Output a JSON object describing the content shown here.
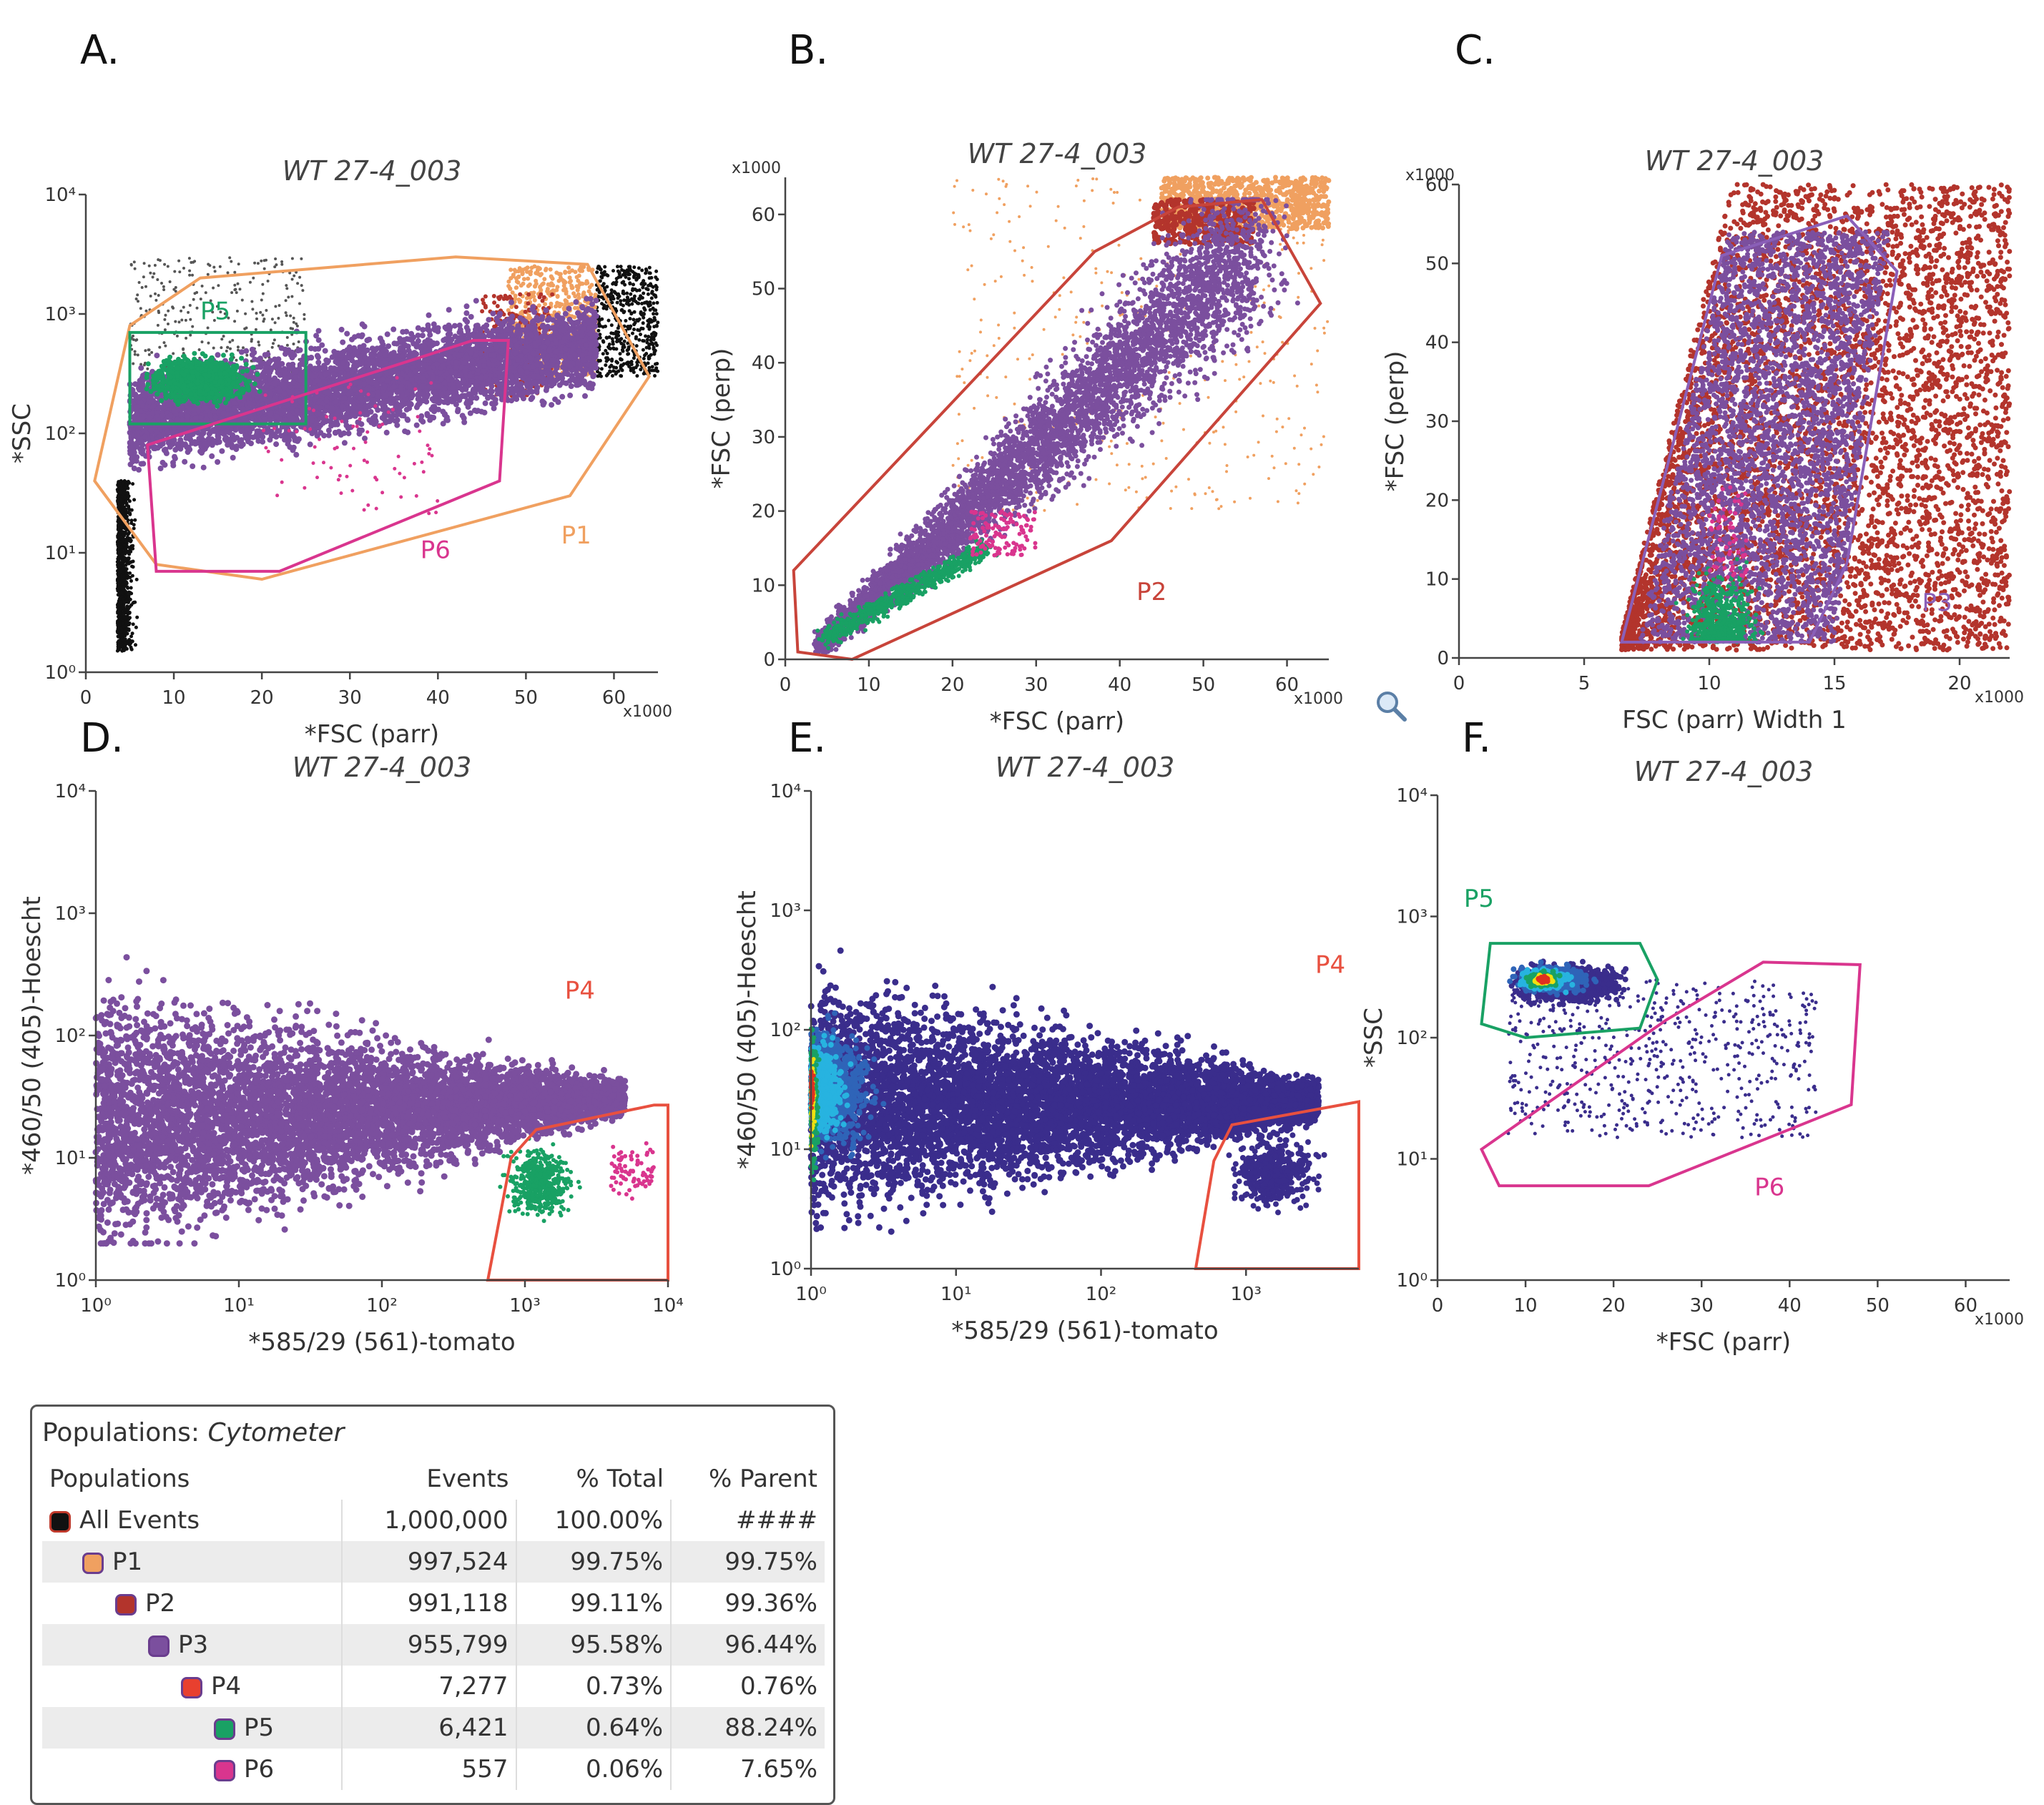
{
  "panel_letters": [
    "A.",
    "B.",
    "C.",
    "D.",
    "E.",
    "F."
  ],
  "chart_data": [
    {
      "panel": "A.",
      "type": "scatter",
      "title": "WT 27-4_003",
      "xlabel": "*FSC (parr)",
      "ylabel": "*SSC",
      "xscale": "linear",
      "x_multiplier": "x1000",
      "xlim": [
        0,
        65
      ],
      "xticks": [
        "0",
        "10",
        "20",
        "30",
        "40",
        "50",
        "60"
      ],
      "yscale": "log",
      "ylim": [
        1,
        10000
      ],
      "yticks": [
        "10⁰",
        "10¹",
        "10²",
        "10³",
        "10⁴"
      ],
      "gates": [
        {
          "name": "P1",
          "color": "#f0a060",
          "polygon": [
            [
              1,
              40
            ],
            [
              5,
              800
            ],
            [
              13,
              2000
            ],
            [
              42,
              3000
            ],
            [
              57,
              2600
            ],
            [
              64,
              300
            ],
            [
              55,
              30
            ],
            [
              20,
              6
            ],
            [
              8,
              8
            ]
          ]
        },
        {
          "name": "P5",
          "color": "#19a164",
          "polygon": [
            [
              5,
              700
            ],
            [
              25,
              700
            ],
            [
              25,
              120
            ],
            [
              5,
              120
            ]
          ]
        },
        {
          "name": "P6",
          "color": "#d9358e",
          "polygon": [
            [
              7,
              80
            ],
            [
              44,
              600
            ],
            [
              48,
              600
            ],
            [
              47,
              40
            ],
            [
              22,
              7
            ],
            [
              8,
              7
            ]
          ]
        }
      ],
      "populations": [
        {
          "name": "All Events",
          "color": "#111111",
          "region": "left edge and upper right"
        },
        {
          "name": "P1",
          "color": "#f0a060",
          "region": "upper right of gate"
        },
        {
          "name": "P2",
          "color": "#b3342c"
        },
        {
          "name": "P3",
          "color": "#7b4f9e",
          "region": "main band"
        },
        {
          "name": "P5",
          "color": "#19a164",
          "region": "x 5-25, y 100-700"
        }
      ]
    },
    {
      "panel": "B.",
      "type": "scatter",
      "title": "WT 27-4_003",
      "xlabel": "*FSC (parr)",
      "ylabel": "*FSC (perp)",
      "xscale": "linear",
      "x_multiplier": "x1000",
      "xlim": [
        0,
        65
      ],
      "xticks": [
        "0",
        "10",
        "20",
        "30",
        "40",
        "50",
        "60"
      ],
      "yscale": "linear",
      "y_multiplier": "x1000",
      "ylim": [
        0,
        65
      ],
      "yticks": [
        "0",
        "10",
        "20",
        "30",
        "40",
        "50",
        "60"
      ],
      "gates": [
        {
          "name": "P2",
          "color": "#c8443a",
          "polygon": [
            [
              1,
              12
            ],
            [
              1.5,
              1
            ],
            [
              8,
              0
            ],
            [
              39,
              16
            ],
            [
              64,
              48
            ],
            [
              57,
              62
            ],
            [
              47,
              61
            ],
            [
              37,
              55
            ]
          ]
        }
      ],
      "populations": [
        {
          "name": "P1",
          "color": "#f0a060",
          "region": "top right, saturated at y≈65"
        },
        {
          "name": "P2",
          "color": "#b3342c",
          "region": "upper tip"
        },
        {
          "name": "P3",
          "color": "#7b4f9e",
          "region": "diagonal band"
        },
        {
          "name": "P5",
          "color": "#19a164",
          "region": "x 5-25, y 3-15"
        },
        {
          "name": "P6",
          "color": "#d9358e",
          "region": "x 20-30"
        }
      ]
    },
    {
      "panel": "C.",
      "type": "scatter",
      "title": "WT 27-4_003",
      "xlabel": "FSC (parr) Width 1",
      "ylabel": "*FSC (perp)",
      "xscale": "linear",
      "x_multiplier": "x1000",
      "xlim": [
        0,
        22
      ],
      "xticks": [
        "0",
        "5",
        "10",
        "15",
        "20"
      ],
      "yscale": "linear",
      "y_multiplier": "x1000",
      "ylim": [
        0,
        60
      ],
      "yticks": [
        "0",
        "10",
        "20",
        "30",
        "40",
        "50",
        "60"
      ],
      "gates": [
        {
          "name": "P3",
          "color": "#8a5fb8",
          "polygon": [
            [
              6.5,
              2
            ],
            [
              10.5,
              51
            ],
            [
              15.5,
              56
            ],
            [
              17.5,
              49
            ],
            [
              15.5,
              12
            ],
            [
              14,
              2
            ]
          ]
        }
      ],
      "populations": [
        {
          "name": "P2",
          "color": "#b3342c",
          "region": "x 6.5-22"
        },
        {
          "name": "P3",
          "color": "#7b4f9e",
          "region": "inside gate"
        },
        {
          "name": "P5",
          "color": "#19a164",
          "region": "x 8-12, y 2-14"
        },
        {
          "name": "P6",
          "color": "#d9358e",
          "region": "x 10-11"
        }
      ]
    },
    {
      "panel": "D.",
      "type": "scatter",
      "title": "WT 27-4_003",
      "xlabel": "*585/29 (561)-tomato",
      "ylabel": "*460/50 (405)-Hoescht",
      "xscale": "log",
      "xlim": [
        1,
        10000
      ],
      "xticks": [
        "10⁰",
        "10¹",
        "10²",
        "10³",
        "10⁴"
      ],
      "yscale": "log",
      "ylim": [
        1,
        10000
      ],
      "yticks": [
        "10⁰",
        "10¹",
        "10²",
        "10³",
        "10⁴"
      ],
      "gates": [
        {
          "name": "P4",
          "color": "#e8503f",
          "polygon": [
            [
              550,
              1
            ],
            [
              800,
              10
            ],
            [
              1200,
              17
            ],
            [
              8000,
              27
            ],
            [
              10000,
              27
            ],
            [
              10000,
              1
            ]
          ]
        }
      ],
      "populations": [
        {
          "name": "P3",
          "color": "#7b4f9e",
          "region": "wedge from x 1 to 5000"
        },
        {
          "name": "P5",
          "color": "#19a164",
          "region": "x 800-4000, y 2-15"
        },
        {
          "name": "P6",
          "color": "#d9358e",
          "region": "x 4000-8000"
        }
      ]
    },
    {
      "panel": "E.",
      "type": "heatmap",
      "title": "WT 27-4_003",
      "xlabel": "*585/29 (561)-tomato",
      "ylabel": "*460/50 (405)-Hoescht",
      "xscale": "log",
      "xlim": [
        1,
        6000
      ],
      "xticks": [
        "10⁰",
        "10¹",
        "10²",
        "10³"
      ],
      "yscale": "log",
      "ylim": [
        1,
        10000
      ],
      "yticks": [
        "10⁰",
        "10¹",
        "10²",
        "10³",
        "10⁴"
      ],
      "gates": [
        {
          "name": "P4",
          "color": "#e8503f",
          "polygon": [
            [
              450,
              1
            ],
            [
              600,
              8
            ],
            [
              800,
              16
            ],
            [
              6000,
              25
            ],
            [
              6000,
              1
            ]
          ]
        }
      ],
      "density_colors": [
        "#3a2d8c",
        "#2f64b8",
        "#27b3e0",
        "#19a164",
        "#f0e010",
        "#e03020"
      ]
    },
    {
      "panel": "F.",
      "type": "heatmap",
      "title": "WT 27-4_003",
      "xlabel": "*FSC (parr)",
      "ylabel": "*SSC",
      "xscale": "linear",
      "x_multiplier": "x1000",
      "xlim": [
        0,
        65
      ],
      "xticks": [
        "0",
        "10",
        "20",
        "30",
        "40",
        "50",
        "60"
      ],
      "yscale": "log",
      "ylim": [
        1,
        10000
      ],
      "yticks": [
        "10⁰",
        "10¹",
        "10²",
        "10³",
        "10⁴"
      ],
      "gates": [
        {
          "name": "P5",
          "color": "#19a164",
          "polygon": [
            [
              5,
              130
            ],
            [
              6,
              600
            ],
            [
              23,
              600
            ],
            [
              25,
              300
            ],
            [
              23,
              120
            ],
            [
              10,
              100
            ]
          ]
        },
        {
          "name": "P6",
          "color": "#d9358e",
          "polygon": [
            [
              5,
              12
            ],
            [
              26,
              140
            ],
            [
              37,
              420
            ],
            [
              48,
              400
            ],
            [
              47,
              28
            ],
            [
              24,
              6
            ],
            [
              7,
              6
            ]
          ]
        }
      ],
      "density_colors": [
        "#3a2d8c",
        "#2f64b8",
        "#27b3e0",
        "#19a164",
        "#f0e010",
        "#e03020"
      ]
    }
  ],
  "populations_table": {
    "title_prefix": "Populations:",
    "title_name": "Cytometer",
    "headers": [
      "Populations",
      "Events",
      "% Total",
      "% Parent"
    ],
    "rows": [
      {
        "name": "All Events",
        "events": "1,000,000",
        "total": "100.00%",
        "parent": "####",
        "color": "#111111",
        "indent": 0
      },
      {
        "name": "P1",
        "events": "997,524",
        "total": "99.75%",
        "parent": "99.75%",
        "color": "#f0a060",
        "indent": 1
      },
      {
        "name": "P2",
        "events": "991,118",
        "total": "99.11%",
        "parent": "99.36%",
        "color": "#b3342c",
        "indent": 2
      },
      {
        "name": "P3",
        "events": "955,799",
        "total": "95.58%",
        "parent": "96.44%",
        "color": "#7b4f9e",
        "indent": 3
      },
      {
        "name": "P4",
        "events": "7,277",
        "total": "0.73%",
        "parent": "0.76%",
        "color": "#e8402f",
        "indent": 4
      },
      {
        "name": "P5",
        "events": "6,421",
        "total": "0.64%",
        "parent": "88.24%",
        "color": "#19a164",
        "indent": 5
      },
      {
        "name": "P6",
        "events": "557",
        "total": "0.06%",
        "parent": "7.65%",
        "color": "#d9358e",
        "indent": 5
      }
    ]
  },
  "icons": {
    "zoom": "magnifier-icon"
  }
}
